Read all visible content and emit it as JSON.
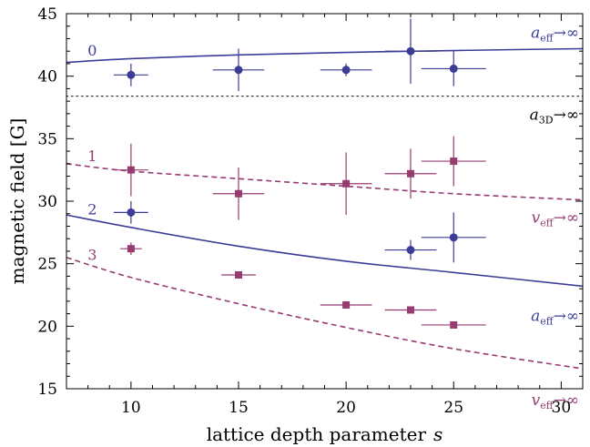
{
  "chart_data": {
    "type": "scatter",
    "xlabel": "lattice depth parameter",
    "xlabel_var": "s",
    "ylabel": "magnetic field  [G]",
    "xlim": [
      7,
      31
    ],
    "ylim": [
      15,
      45
    ],
    "x_ticks": [
      10,
      15,
      20,
      25,
      30
    ],
    "y_ticks": [
      15,
      20,
      25,
      30,
      35,
      40,
      45
    ],
    "grid": false,
    "colors": {
      "blue": "#3c3c96",
      "purple": "#963c70",
      "dotted": "#333333"
    },
    "curves": [
      {
        "label": "0",
        "style": "solid",
        "color": "blue",
        "points": [
          [
            7,
            41.1
          ],
          [
            10,
            41.4
          ],
          [
            15,
            41.7
          ],
          [
            20,
            41.9
          ],
          [
            25,
            42.05
          ],
          [
            31,
            42.2
          ]
        ],
        "asymptote": "a_eff"
      },
      {
        "label": "1",
        "style": "dashed",
        "color": "purple",
        "points": [
          [
            7,
            33.0
          ],
          [
            10,
            32.4
          ],
          [
            15,
            31.8
          ],
          [
            20,
            31.2
          ],
          [
            25,
            30.6
          ],
          [
            31,
            30.1
          ]
        ],
        "asymptote": "v_eff"
      },
      {
        "label": "2",
        "style": "solid",
        "color": "blue",
        "points": [
          [
            7,
            28.9
          ],
          [
            10,
            27.9
          ],
          [
            15,
            26.4
          ],
          [
            20,
            25.2
          ],
          [
            25,
            24.3
          ],
          [
            31,
            23.2
          ]
        ],
        "asymptote": "a_eff"
      },
      {
        "label": "3",
        "style": "dashed",
        "color": "purple",
        "points": [
          [
            7,
            25.5
          ],
          [
            10,
            23.9
          ],
          [
            15,
            21.8
          ],
          [
            20,
            19.9
          ],
          [
            25,
            18.2
          ],
          [
            31,
            16.6
          ]
        ],
        "asymptote": "v_eff"
      }
    ],
    "reference_line": {
      "y": 38.4,
      "style": "dotted",
      "label": "a_3D"
    },
    "asymptote_labels": {
      "a_eff": {
        "base": "a",
        "sub": "eff",
        "arrow": "→∞"
      },
      "v_eff": {
        "base": "v",
        "sub": "eff",
        "arrow": "→∞"
      },
      "a_3D": {
        "base": "a",
        "sub": "3D",
        "arrow": "→∞"
      }
    },
    "series": [
      {
        "marker": "circle",
        "color": "blue",
        "points": [
          {
            "x": 10,
            "y": 40.1,
            "xerr": 0.8,
            "yerr": 0.9
          },
          {
            "x": 15,
            "y": 40.5,
            "xerr": 1.2,
            "yerr": 1.7
          },
          {
            "x": 20,
            "y": 40.5,
            "xerr": 1.2,
            "yerr": 0.5
          },
          {
            "x": 23,
            "y": 42.0,
            "xerr": 1.2,
            "yerr": 2.6
          },
          {
            "x": 25,
            "y": 40.6,
            "xerr": 1.5,
            "yerr": 1.4
          },
          {
            "x": 10,
            "y": 29.1,
            "xerr": 0.8,
            "yerr": 0.9
          },
          {
            "x": 23,
            "y": 26.1,
            "xerr": 1.2,
            "yerr": 0.8
          },
          {
            "x": 25,
            "y": 27.1,
            "xerr": 1.5,
            "yerr": 2.0
          }
        ]
      },
      {
        "marker": "square",
        "color": "purple",
        "points": [
          {
            "x": 10,
            "y": 32.5,
            "xerr": 0.8,
            "yerr": 2.1
          },
          {
            "x": 15,
            "y": 30.6,
            "xerr": 1.2,
            "yerr": 2.1
          },
          {
            "x": 20,
            "y": 31.4,
            "xerr": 1.2,
            "yerr": 2.5
          },
          {
            "x": 23,
            "y": 32.2,
            "xerr": 1.2,
            "yerr": 2.0
          },
          {
            "x": 25,
            "y": 33.2,
            "xerr": 1.5,
            "yerr": 2.0
          },
          {
            "x": 10,
            "y": 26.2,
            "xerr": 0.5,
            "yerr": 0.5
          },
          {
            "x": 15,
            "y": 24.1,
            "xerr": 0.8,
            "yerr": 0.2
          },
          {
            "x": 20,
            "y": 21.7,
            "xerr": 1.2,
            "yerr": 0.2
          },
          {
            "x": 23,
            "y": 21.3,
            "xerr": 1.2,
            "yerr": 0.2
          },
          {
            "x": 25,
            "y": 20.1,
            "xerr": 1.5,
            "yerr": 0.2
          }
        ]
      }
    ]
  }
}
